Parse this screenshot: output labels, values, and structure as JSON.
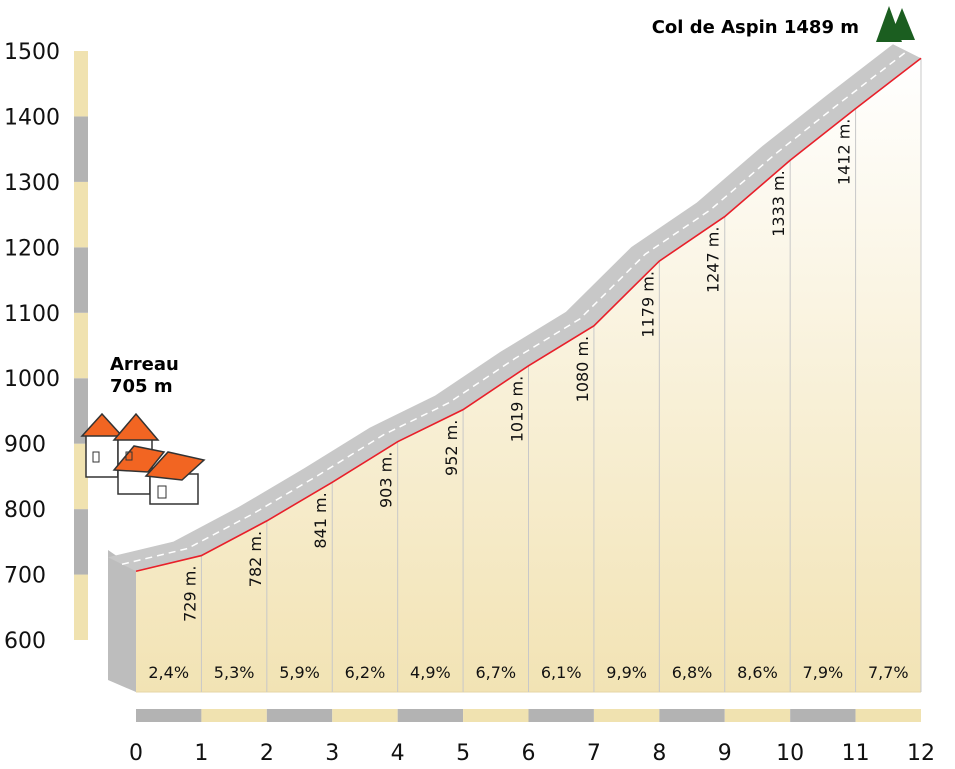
{
  "chart_data": {
    "type": "area",
    "subtype": "climb-elevation-profile",
    "start": {
      "name": "Arreau",
      "elevation": "705 m"
    },
    "summit": {
      "label": "Col de Aspin 1489 m"
    },
    "x_ticks": [
      "0",
      "1",
      "2",
      "3",
      "4",
      "5",
      "6",
      "7",
      "8",
      "9",
      "10",
      "11",
      "12"
    ],
    "y_ticks": [
      "600",
      "700",
      "800",
      "900",
      "1000",
      "1100",
      "1200",
      "1300",
      "1400",
      "1500"
    ],
    "xlim": [
      0,
      12
    ],
    "ylim": [
      600,
      1500
    ],
    "x": [
      0,
      1,
      2,
      3,
      4,
      5,
      6,
      7,
      8,
      9,
      10,
      11,
      12
    ],
    "elevation": [
      705,
      729,
      782,
      841,
      903,
      952,
      1019,
      1080,
      1179,
      1247,
      1333,
      1412,
      1489
    ],
    "altitude_labels": [
      "729 m.",
      "782 m.",
      "841 m.",
      "903 m.",
      "952 m.",
      "1019 m.",
      "1080 m.",
      "1179 m.",
      "1247 m.",
      "1333 m.",
      "1412 m."
    ],
    "segment_gradients": [
      "2,4%",
      "5,3%",
      "5,9%",
      "6,2%",
      "4,9%",
      "6,7%",
      "6,1%",
      "9,9%",
      "6,8%",
      "8,6%",
      "7,9%",
      "7,7%"
    ],
    "colors": {
      "fill_top": "#ffffff",
      "fill_bottom": "#f2e3b4",
      "profile_line": "#e8202a",
      "road": "#c8c8c8",
      "road_side": "#bdbdbd",
      "scale_gray": "#b3b3b3",
      "scale_cream": "#f0e2b0",
      "roof": "#f26522",
      "tree": "#1b5e20"
    }
  }
}
